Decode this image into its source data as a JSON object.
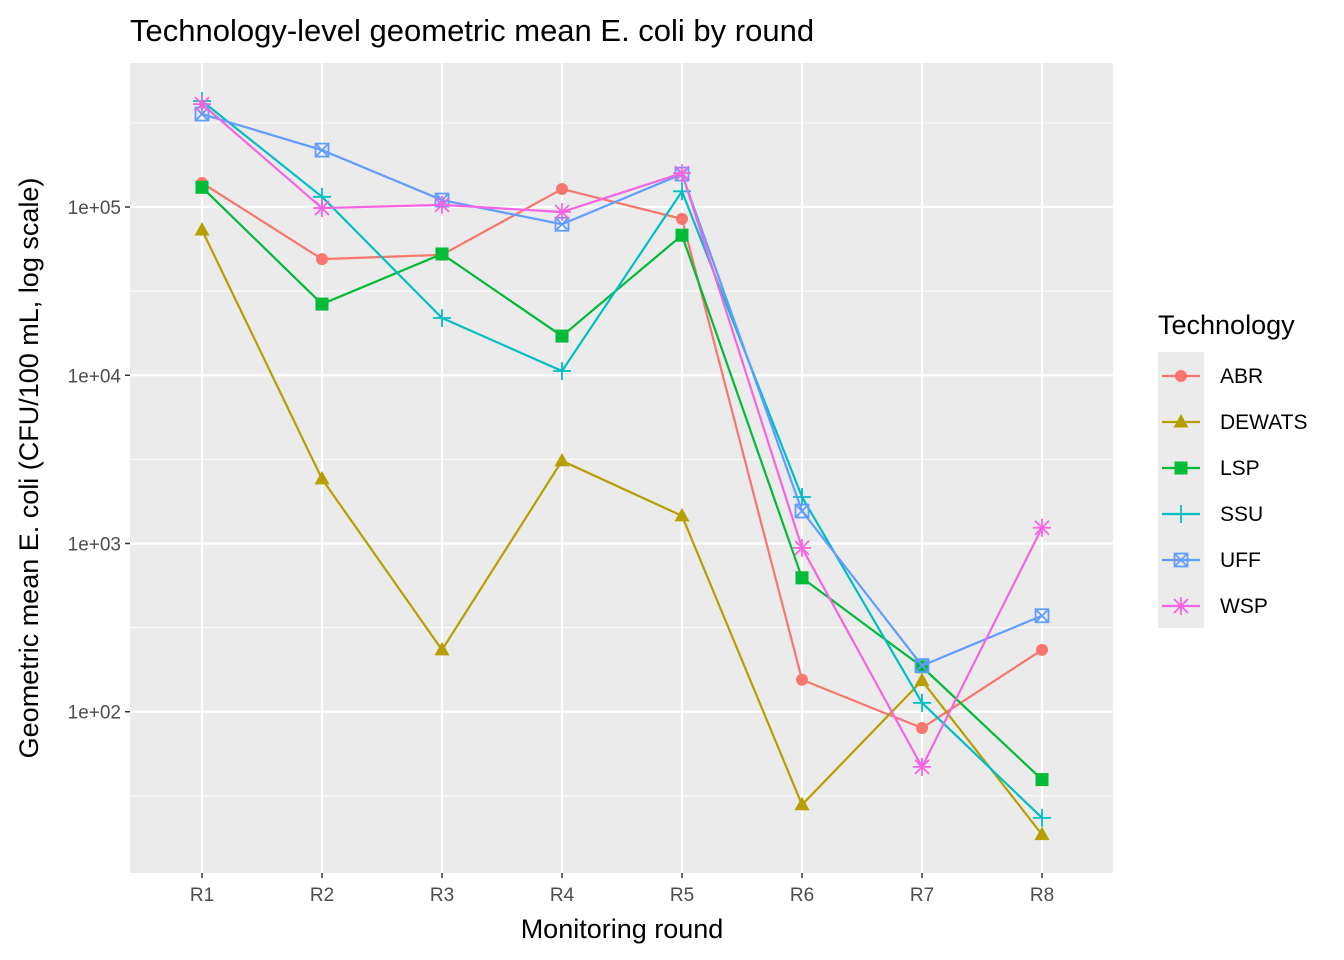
{
  "chart_data": {
    "type": "line",
    "title": "Technology-level geometric mean E. coli by round",
    "xlabel": "Monitoring round",
    "ylabel": "Geometric mean E. coli (CFU/100 mL, log scale)",
    "y_scale": "log10",
    "ylim": [
      11,
      718000
    ],
    "y_ticks": [
      100,
      1000,
      10000,
      100000
    ],
    "y_tick_labels": [
      "1e+02",
      "1e+03",
      "1e+04",
      "1e+05"
    ],
    "categories": [
      "R1",
      "R2",
      "R3",
      "R4",
      "R5",
      "R6",
      "R7",
      "R8"
    ],
    "grid": true,
    "legend": {
      "title": "Technology",
      "placement": "right"
    },
    "series": [
      {
        "name": "ABR",
        "color": "#F8766D",
        "marker": "circle",
        "values": [
          139000,
          49000,
          52000,
          128000,
          85000,
          155,
          80,
          233
        ]
      },
      {
        "name": "DEWATS",
        "color": "#B79F00",
        "marker": "triangle",
        "values": [
          73000,
          2420,
          233,
          3100,
          1460,
          28,
          153,
          18.6
        ]
      },
      {
        "name": "LSP",
        "color": "#00BA38",
        "marker": "square",
        "values": [
          131000,
          26500,
          52600,
          17100,
          68000,
          625,
          185,
          39.5
        ]
      },
      {
        "name": "SSU",
        "color": "#00BFC4",
        "marker": "plus",
        "values": [
          427000,
          115000,
          21900,
          10600,
          124000,
          1890,
          113,
          23.4
        ]
      },
      {
        "name": "UFF",
        "color": "#619CFF",
        "marker": "square-x",
        "values": [
          357000,
          218000,
          110000,
          79000,
          157000,
          1560,
          188,
          372
        ]
      },
      {
        "name": "WSP",
        "color": "#F564E3",
        "marker": "asterisk",
        "values": [
          409000,
          98600,
          103000,
          93400,
          159000,
          942,
          47,
          1240
        ]
      }
    ]
  }
}
